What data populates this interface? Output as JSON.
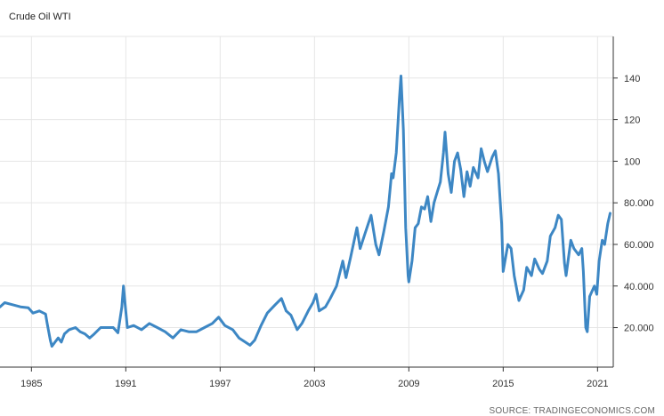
{
  "header": {
    "title": "Crude Oil WTI"
  },
  "footer": {
    "source": "SOURCE: TRADINGECONOMICS.COM"
  },
  "colors": {
    "line": "#3d87c4",
    "grid": "#e6e6e6",
    "axis": "#333333"
  },
  "chart_data": {
    "type": "line",
    "title": "Crude Oil WTI",
    "xlabel": "",
    "ylabel": "",
    "xlim": [
      1983.0,
      2022.0
    ],
    "ylim": [
      1,
      160
    ],
    "x_ticks": [
      "1985",
      "1991",
      "1997",
      "2003",
      "2009",
      "2015",
      "2021"
    ],
    "x_tick_values": [
      1985,
      1991,
      1997,
      2003,
      2009,
      2015,
      2021
    ],
    "y_ticks": [
      "20.000",
      "40.000",
      "60.000",
      "80.000",
      "100",
      "120",
      "140"
    ],
    "y_tick_values": [
      20,
      40,
      60,
      80,
      100,
      120,
      140
    ],
    "grid": true,
    "series": [
      {
        "name": "",
        "points": [
          [
            1983.0,
            30
          ],
          [
            1983.3,
            32
          ],
          [
            1983.8,
            31
          ],
          [
            1984.3,
            30
          ],
          [
            1984.8,
            29.5
          ],
          [
            1985.1,
            27
          ],
          [
            1985.5,
            28
          ],
          [
            1985.9,
            26.5
          ],
          [
            1986.0,
            22
          ],
          [
            1986.2,
            14
          ],
          [
            1986.3,
            11
          ],
          [
            1986.5,
            13
          ],
          [
            1986.7,
            15
          ],
          [
            1986.9,
            13
          ],
          [
            1987.1,
            17
          ],
          [
            1987.4,
            19
          ],
          [
            1987.8,
            20
          ],
          [
            1988.1,
            18
          ],
          [
            1988.4,
            17
          ],
          [
            1988.7,
            15
          ],
          [
            1989.0,
            17
          ],
          [
            1989.4,
            20
          ],
          [
            1989.8,
            20
          ],
          [
            1990.2,
            20
          ],
          [
            1990.5,
            17.5
          ],
          [
            1990.75,
            30
          ],
          [
            1990.85,
            40
          ],
          [
            1991.0,
            28
          ],
          [
            1991.1,
            20
          ],
          [
            1991.5,
            21
          ],
          [
            1992.0,
            19
          ],
          [
            1992.5,
            22
          ],
          [
            1993.0,
            20
          ],
          [
            1993.5,
            18
          ],
          [
            1994.0,
            15
          ],
          [
            1994.5,
            19
          ],
          [
            1995.0,
            18
          ],
          [
            1995.5,
            18
          ],
          [
            1996.0,
            20
          ],
          [
            1996.5,
            22
          ],
          [
            1996.9,
            25
          ],
          [
            1997.3,
            21
          ],
          [
            1997.8,
            19
          ],
          [
            1998.2,
            15
          ],
          [
            1998.6,
            13
          ],
          [
            1998.9,
            11.5
          ],
          [
            1999.2,
            14
          ],
          [
            1999.6,
            21
          ],
          [
            2000.0,
            27
          ],
          [
            2000.5,
            31
          ],
          [
            2000.9,
            34
          ],
          [
            2001.2,
            28
          ],
          [
            2001.5,
            26
          ],
          [
            2001.9,
            19
          ],
          [
            2002.2,
            22
          ],
          [
            2002.6,
            28
          ],
          [
            2002.9,
            32
          ],
          [
            2003.1,
            36
          ],
          [
            2003.3,
            28
          ],
          [
            2003.7,
            30
          ],
          [
            2004.0,
            34
          ],
          [
            2004.4,
            40
          ],
          [
            2004.8,
            52
          ],
          [
            2005.0,
            44
          ],
          [
            2005.3,
            54
          ],
          [
            2005.7,
            68
          ],
          [
            2005.9,
            58
          ],
          [
            2006.2,
            65
          ],
          [
            2006.6,
            74
          ],
          [
            2006.9,
            60
          ],
          [
            2007.1,
            55
          ],
          [
            2007.4,
            66
          ],
          [
            2007.7,
            78
          ],
          [
            2007.9,
            94
          ],
          [
            2008.0,
            92
          ],
          [
            2008.2,
            104
          ],
          [
            2008.4,
            130
          ],
          [
            2008.5,
            141
          ],
          [
            2008.65,
            115
          ],
          [
            2008.8,
            68
          ],
          [
            2008.95,
            45
          ],
          [
            2009.0,
            42
          ],
          [
            2009.2,
            52
          ],
          [
            2009.4,
            68
          ],
          [
            2009.6,
            70
          ],
          [
            2009.8,
            78
          ],
          [
            2010.0,
            77
          ],
          [
            2010.2,
            83
          ],
          [
            2010.4,
            71
          ],
          [
            2010.6,
            80
          ],
          [
            2010.8,
            85
          ],
          [
            2011.0,
            90
          ],
          [
            2011.2,
            104
          ],
          [
            2011.3,
            114
          ],
          [
            2011.5,
            94
          ],
          [
            2011.7,
            85
          ],
          [
            2011.9,
            100
          ],
          [
            2012.1,
            104
          ],
          [
            2012.3,
            96
          ],
          [
            2012.5,
            83
          ],
          [
            2012.7,
            95
          ],
          [
            2012.9,
            88
          ],
          [
            2013.1,
            97
          ],
          [
            2013.4,
            92
          ],
          [
            2013.6,
            106
          ],
          [
            2013.8,
            100
          ],
          [
            2014.0,
            95
          ],
          [
            2014.3,
            102
          ],
          [
            2014.5,
            105
          ],
          [
            2014.7,
            94
          ],
          [
            2014.9,
            70
          ],
          [
            2015.0,
            47
          ],
          [
            2015.3,
            60
          ],
          [
            2015.5,
            58
          ],
          [
            2015.7,
            45
          ],
          [
            2015.9,
            37
          ],
          [
            2016.0,
            33
          ],
          [
            2016.3,
            38
          ],
          [
            2016.5,
            49
          ],
          [
            2016.8,
            45
          ],
          [
            2017.0,
            53
          ],
          [
            2017.3,
            48
          ],
          [
            2017.5,
            46
          ],
          [
            2017.8,
            52
          ],
          [
            2018.0,
            64
          ],
          [
            2018.3,
            68
          ],
          [
            2018.5,
            74
          ],
          [
            2018.7,
            72
          ],
          [
            2018.9,
            51
          ],
          [
            2019.0,
            45
          ],
          [
            2019.3,
            62
          ],
          [
            2019.5,
            58
          ],
          [
            2019.8,
            55
          ],
          [
            2020.0,
            58
          ],
          [
            2020.1,
            47
          ],
          [
            2020.25,
            20
          ],
          [
            2020.35,
            18
          ],
          [
            2020.5,
            35
          ],
          [
            2020.8,
            40
          ],
          [
            2020.95,
            36
          ],
          [
            2021.1,
            52
          ],
          [
            2021.3,
            62
          ],
          [
            2021.45,
            60
          ],
          [
            2021.65,
            70
          ],
          [
            2021.8,
            75
          ]
        ]
      }
    ]
  }
}
